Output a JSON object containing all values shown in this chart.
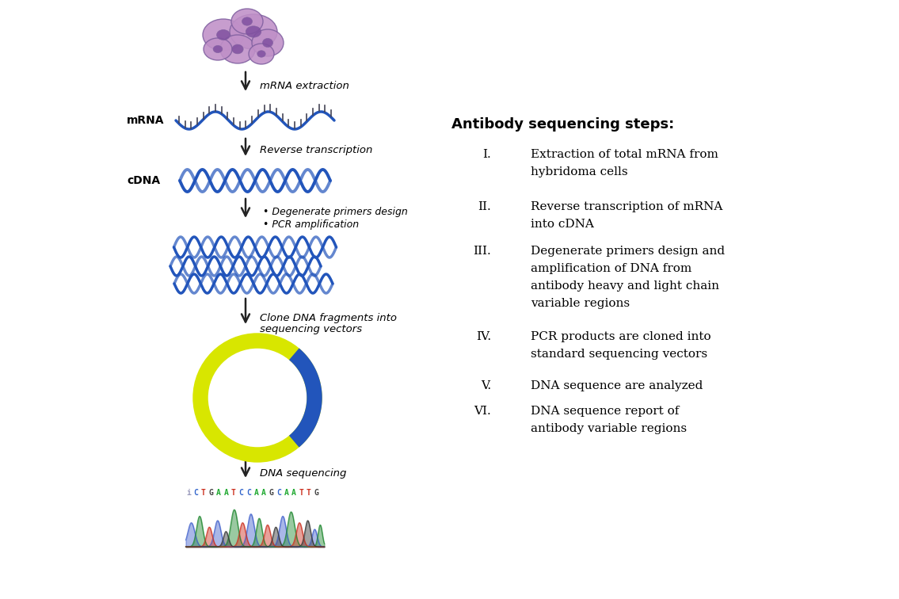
{
  "bg_color": "#ffffff",
  "title_text": "Antibody sequencing steps:",
  "steps": [
    {
      "num": "I.",
      "text": "Extraction of total mRNA from\nhybridoma cells"
    },
    {
      "num": "II.",
      "text": "Reverse transcription of mRNA\ninto cDNA"
    },
    {
      "num": "III.",
      "text": "Degenerate primers design and\namplification of DNA from\nantibody heavy and light chain\nvariable regions"
    },
    {
      "num": "IV.",
      "text": "PCR products are cloned into\nstandard sequencing vectors"
    },
    {
      "num": "V.",
      "text": "DNA sequence are analyzed"
    },
    {
      "num": "VI.",
      "text": "DNA sequence report of\nantibody variable regions"
    }
  ],
  "dna_color": "#2255bb",
  "dna_dark": "#1a40a0",
  "yellow_color": "#d8e600",
  "blue_insert": "#2255bb",
  "cell_fill": "#c090c8",
  "cell_edge": "#8060a0",
  "nucleus_fill": "#8050a0",
  "arrow_color": "#222222",
  "label_mrna_extraction": "mRNA extraction",
  "label_mrna": "mRNA",
  "label_rev_trans": "Reverse transcription",
  "label_cdna": "cDNA",
  "label_primers_line1": "• Degenerate primers design",
  "label_primers_line2": "• PCR amplification",
  "label_clone": "Clone DNA fragments into\nsequencing vectors",
  "label_dna_seq": "DNA sequencing",
  "seq_text": "iCTGAATCCAAGCAATTG"
}
